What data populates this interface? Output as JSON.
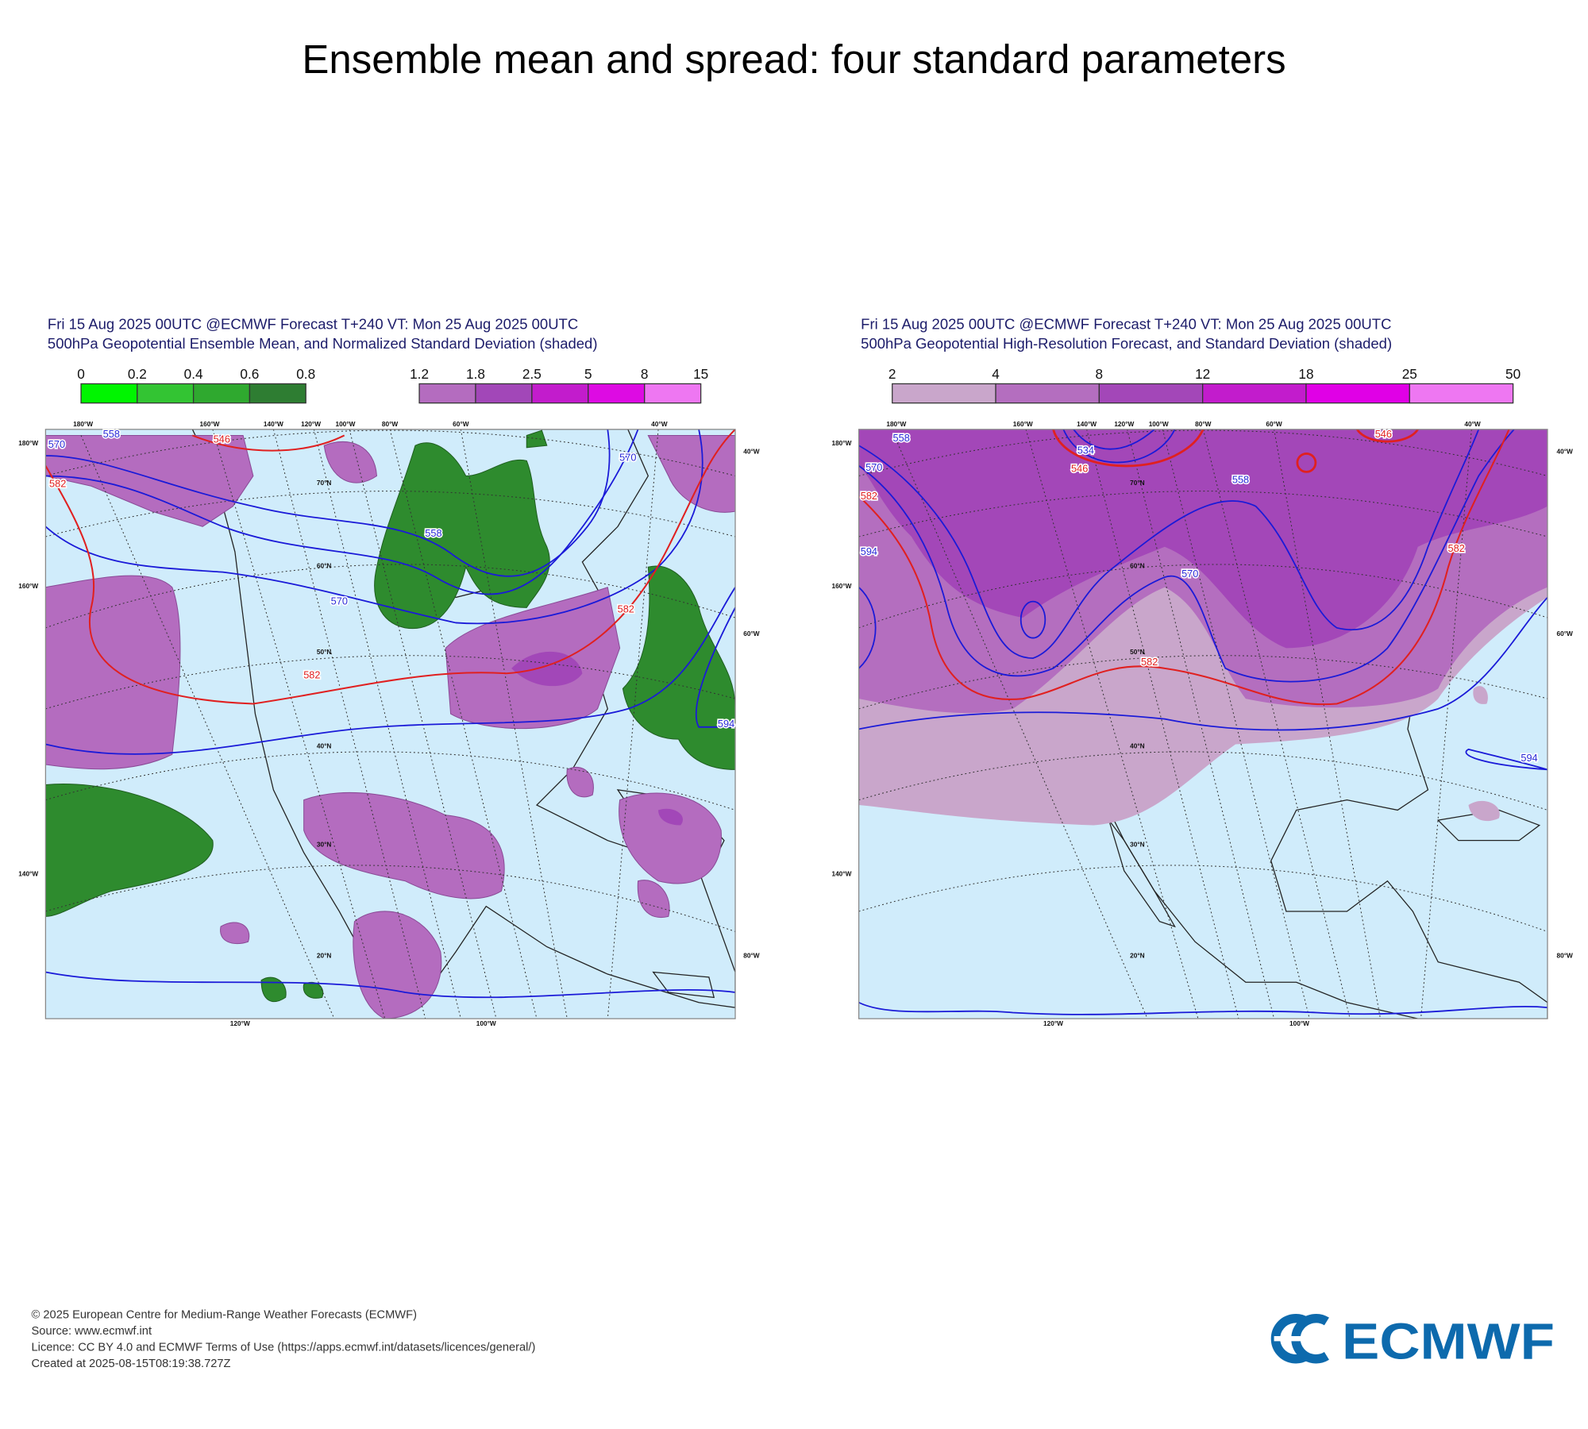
{
  "title": "Ensemble mean and spread: four standard parameters",
  "panels": [
    {
      "header": [
        "Fri 15 Aug 2025 00UTC @ECMWF Forecast T+240 VT: Mon 25 Aug 2025 00UTC",
        "500hPa Geopotential Ensemble Mean, and Normalized Standard Deviation (shaded)"
      ],
      "colorbars": [
        {
          "ticks": [
            0,
            0.2,
            0.4,
            0.6,
            0.8
          ],
          "colors": [
            "#00f500",
            "#33c433",
            "#2fa92f",
            "#2e7d32"
          ]
        },
        {
          "ticks": [
            1.2,
            1.8,
            2.5,
            5,
            8,
            15
          ],
          "colors": [
            "#b46cbf",
            "#a247b8",
            "#c21ccc",
            "#dd0be3",
            "#ee77f2"
          ]
        }
      ],
      "lon_top": [
        "180°W",
        "160°W",
        "140°W",
        "120°W",
        "100°W",
        "80°W",
        "60°W",
        "40°W"
      ],
      "lon_left": [
        "180°W",
        "160°W",
        "140°W"
      ],
      "lon_right": [
        "40°W",
        "60°W",
        "80°W"
      ],
      "lon_bottom": [
        "120°W",
        "100°W"
      ],
      "lat": [
        "70°N",
        "60°N",
        "50°N",
        "40°N",
        "30°N",
        "20°N"
      ],
      "contour_labels": [
        {
          "label": 558,
          "color": "#2a2ad8"
        },
        {
          "label": 570,
          "color": "#2a2ad8"
        },
        {
          "label": 582,
          "color": "#e02020"
        },
        {
          "label": 546,
          "color": "#e02020"
        },
        {
          "label": 558,
          "color": "#2a2ad8"
        },
        {
          "label": 570,
          "color": "#2a2ad8"
        },
        {
          "label": 582,
          "color": "#e02020"
        },
        {
          "label": 570,
          "color": "#2a2ad8"
        },
        {
          "label": 582,
          "color": "#e02020"
        },
        {
          "label": 594,
          "color": "#2a2ad8"
        }
      ]
    },
    {
      "header": [
        "Fri 15 Aug 2025 00UTC @ECMWF Forecast T+240 VT: Mon 25 Aug 2025 00UTC",
        "500hPa Geopotential High-Resolution Forecast, and Standard Deviation (shaded)"
      ],
      "colorbars": [
        {
          "ticks": [
            2,
            4,
            8,
            12,
            18,
            25,
            50
          ],
          "colors": [
            "#c9a6cb",
            "#b46ebf",
            "#a347b8",
            "#c21ccc",
            "#e000e6",
            "#ee77f2"
          ]
        }
      ],
      "lon_top": [
        "180°W",
        "160°W",
        "140°W",
        "120°W",
        "100°W",
        "80°W",
        "60°W",
        "40°W"
      ],
      "lon_left": [
        "180°W",
        "160°W",
        "140°W"
      ],
      "lon_right": [
        "40°W",
        "60°W",
        "80°W"
      ],
      "lon_bottom": [
        "120°W",
        "100°W"
      ],
      "lat": [
        "70°N",
        "60°N",
        "50°N",
        "40°N",
        "30°N",
        "20°N"
      ],
      "contour_labels": [
        {
          "label": 558,
          "color": "#2a2ad8"
        },
        {
          "label": 570,
          "color": "#2a2ad8"
        },
        {
          "label": 582,
          "color": "#e02020"
        },
        {
          "label": 546,
          "color": "#e02020"
        },
        {
          "label": 534,
          "color": "#2a2ad8"
        },
        {
          "label": 558,
          "color": "#2a2ad8"
        },
        {
          "label": 570,
          "color": "#2a2ad8"
        },
        {
          "label": 582,
          "color": "#e02020"
        },
        {
          "label": 582,
          "color": "#e02020"
        },
        {
          "label": 546,
          "color": "#e02020"
        },
        {
          "label": 594,
          "color": "#2a2ad8"
        },
        {
          "label": 594,
          "color": "#2a2ad8"
        }
      ]
    }
  ],
  "footer": [
    "© 2025 European Centre for Medium-Range Weather Forecasts (ECMWF)",
    "Source: www.ecmwf.int",
    "Licence: CC BY 4.0 and ECMWF Terms of Use (https://apps.ecmwf.int/datasets/licences/general/)",
    "Created at 2025-08-15T08:19:38.727Z"
  ],
  "logo": "ECMWF"
}
